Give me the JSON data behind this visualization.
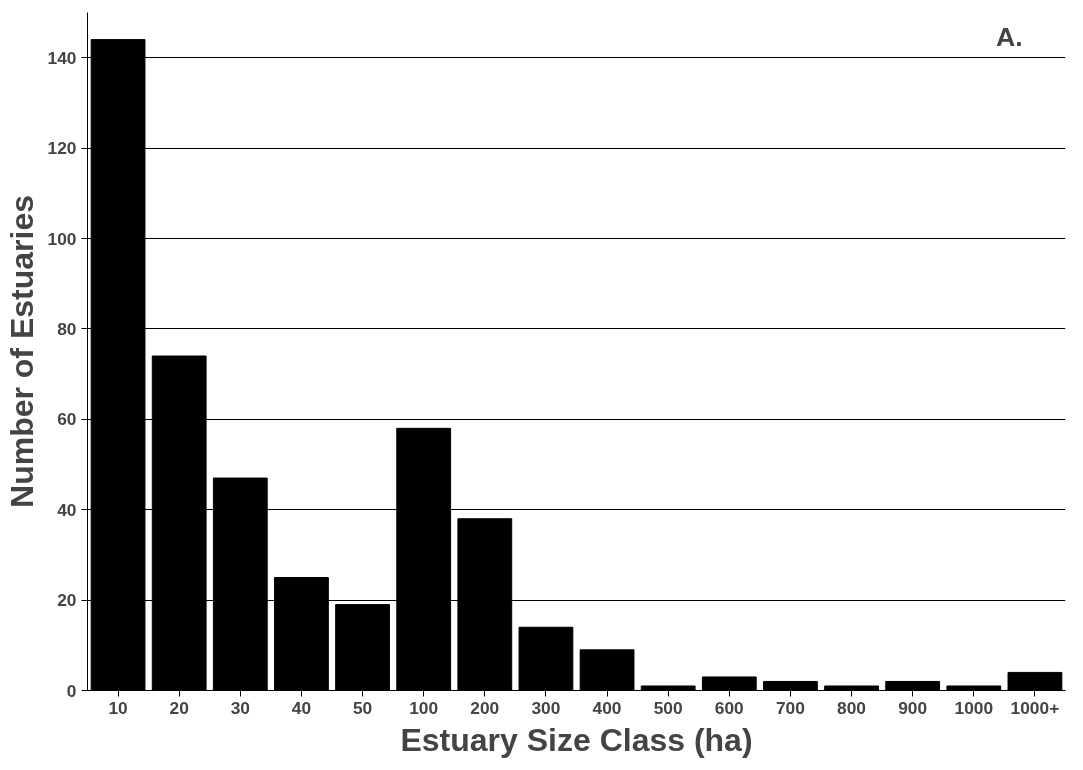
{
  "chart_data": {
    "type": "bar",
    "xlabel": "Estuary Size Class (ha)",
    "ylabel": "Number of Estuaries",
    "categories": [
      "10",
      "20",
      "30",
      "40",
      "50",
      "100",
      "200",
      "300",
      "400",
      "500",
      "600",
      "700",
      "800",
      "900",
      "1000",
      "1000+"
    ],
    "values": [
      144,
      74,
      47,
      25,
      19,
      58,
      38,
      14,
      9,
      1,
      3,
      2,
      1,
      2,
      1,
      4
    ],
    "color": "#000000",
    "ylim": [
      0,
      150
    ],
    "yticks": [
      0,
      20,
      40,
      60,
      80,
      100,
      120,
      140
    ],
    "grid": "y",
    "annotations": [
      "A."
    ]
  }
}
